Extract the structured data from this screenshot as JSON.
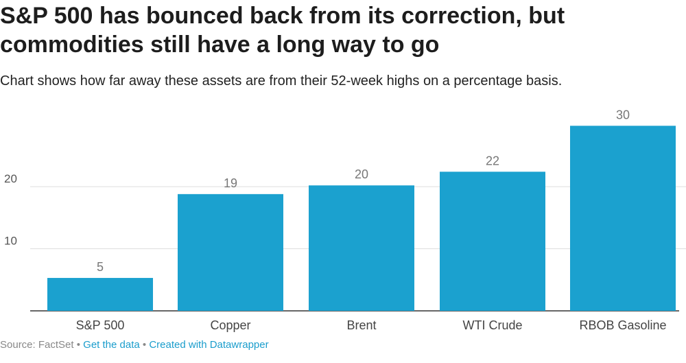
{
  "header": {
    "title": "S&P 500 has bounced back from its correction, but commodities still have a long way to go",
    "subtitle": "Chart shows how far away these assets are from their 52-week highs on a percentage basis."
  },
  "chart_data": {
    "type": "bar",
    "categories": [
      "S&P 500",
      "Copper",
      "Brent",
      "WTI Crude",
      "RBOB Gasoline"
    ],
    "values": [
      5.3,
      18.8,
      20.2,
      22.4,
      29.8
    ],
    "value_labels": [
      "5",
      "19",
      "20",
      "22",
      "30"
    ],
    "yticks": [
      10,
      20
    ],
    "ylim": [
      0,
      30
    ],
    "grid": true,
    "bar_color": "#1ba1cf",
    "label_color": "#777777",
    "grid_color": "#dddddd"
  },
  "footer": {
    "source": "Source: FactSet",
    "separator": "•",
    "get_data": "Get the data",
    "created_with": "Created with Datawrapper"
  }
}
